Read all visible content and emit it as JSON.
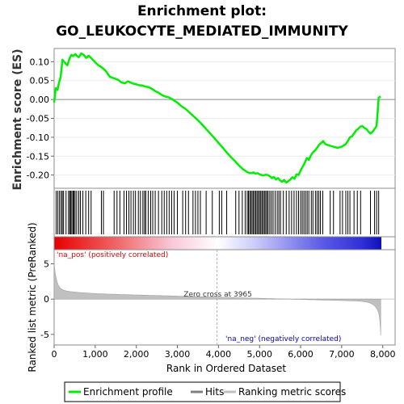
{
  "chart_data": {
    "type": "line",
    "title": "Enrichment plot:",
    "subtitle": "GO_LEUKOCYTE_MEDIATED_IMMUNITY",
    "enrichment_panel": {
      "ylabel": "Enrichment score (ES)",
      "ylim": [
        -0.235,
        0.135
      ],
      "yticks": [
        "0.10",
        "0.05",
        "0.00",
        "-0.05",
        "-0.10",
        "-0.15",
        "-0.20"
      ],
      "ytick_values": [
        0.1,
        0.05,
        0.0,
        -0.05,
        -0.1,
        -0.15,
        -0.2
      ],
      "color": "#00ee00",
      "x": [
        0,
        40,
        80,
        120,
        160,
        200,
        260,
        320,
        380,
        420,
        460,
        520,
        560,
        600,
        660,
        720,
        780,
        840,
        900,
        960,
        1060,
        1160,
        1260,
        1360,
        1460,
        1560,
        1640,
        1720,
        1800,
        1860,
        1920,
        1980,
        2060,
        2140,
        2220,
        2300,
        2380,
        2460,
        2540,
        2620,
        2700,
        2780,
        2860,
        2940,
        3020,
        3100,
        3200,
        3300,
        3400,
        3500,
        3600,
        3700,
        3800,
        3900,
        4000,
        4100,
        4200,
        4300,
        4400,
        4500,
        4600,
        4700,
        4750,
        4800,
        4850,
        4900,
        4950,
        5000,
        5050,
        5100,
        5150,
        5200,
        5250,
        5300,
        5350,
        5400,
        5450,
        5500,
        5550,
        5600,
        5650,
        5700,
        5750,
        5800,
        5850,
        5900,
        5950,
        6000,
        6050,
        6100,
        6150,
        6200,
        6250,
        6300,
        6350,
        6400,
        6450,
        6500,
        6550,
        6600,
        6700,
        6800,
        6900,
        7000,
        7100,
        7150,
        7200,
        7250,
        7300,
        7350,
        7400,
        7450,
        7500,
        7550,
        7600,
        7650,
        7700,
        7750,
        7800,
        7850,
        7900,
        7950
      ],
      "values": [
        -0.008,
        0.03,
        0.025,
        0.045,
        0.06,
        0.105,
        0.098,
        0.09,
        0.11,
        0.118,
        0.115,
        0.12,
        0.115,
        0.112,
        0.122,
        0.118,
        0.11,
        0.116,
        0.11,
        0.103,
        0.092,
        0.085,
        0.075,
        0.06,
        0.056,
        0.052,
        0.045,
        0.043,
        0.048,
        0.045,
        0.042,
        0.041,
        0.038,
        0.037,
        0.034,
        0.033,
        0.028,
        0.022,
        0.018,
        0.012,
        0.008,
        0.006,
        0.002,
        -0.004,
        -0.01,
        -0.018,
        -0.025,
        -0.035,
        -0.045,
        -0.055,
        -0.066,
        -0.078,
        -0.09,
        -0.102,
        -0.115,
        -0.127,
        -0.14,
        -0.152,
        -0.163,
        -0.175,
        -0.185,
        -0.192,
        -0.195,
        -0.195,
        -0.193,
        -0.196,
        -0.195,
        -0.198,
        -0.2,
        -0.201,
        -0.199,
        -0.2,
        -0.203,
        -0.208,
        -0.205,
        -0.212,
        -0.208,
        -0.214,
        -0.218,
        -0.213,
        -0.22,
        -0.216,
        -0.212,
        -0.206,
        -0.21,
        -0.198,
        -0.2,
        -0.188,
        -0.178,
        -0.168,
        -0.155,
        -0.16,
        -0.148,
        -0.14,
        -0.135,
        -0.128,
        -0.12,
        -0.115,
        -0.11,
        -0.118,
        -0.122,
        -0.125,
        -0.128,
        -0.125,
        -0.118,
        -0.11,
        -0.1,
        -0.098,
        -0.09,
        -0.082,
        -0.078,
        -0.072,
        -0.07,
        -0.075,
        -0.078,
        -0.085,
        -0.09,
        -0.086,
        -0.078,
        -0.07,
        0.005,
        0.008
      ]
    },
    "hits_panel": {
      "hit_ranks": [
        50,
        90,
        130,
        170,
        200,
        230,
        290,
        350,
        380,
        400,
        430,
        460,
        480,
        510,
        550,
        600,
        640,
        700,
        770,
        840,
        900,
        1150,
        1200,
        1460,
        1530,
        1600,
        1700,
        1760,
        1820,
        1870,
        1930,
        1980,
        2050,
        2100,
        2160,
        2200,
        2230,
        2290,
        2350,
        2400,
        2460,
        2540,
        2620,
        2680,
        2740,
        2800,
        2860,
        2920,
        3000,
        3130,
        3200,
        3270,
        3380,
        3440,
        3500,
        3560,
        3700,
        3850,
        4020,
        4080,
        4200,
        4420,
        4500,
        4580,
        4650,
        4700,
        4730,
        4760,
        4790,
        4820,
        4850,
        4880,
        4910,
        4940,
        4970,
        5000,
        5030,
        5060,
        5090,
        5120,
        5150,
        5180,
        5210,
        5250,
        5290,
        5330,
        5380,
        5430,
        5470,
        5510,
        5580,
        5650,
        5720,
        5780,
        5840,
        5900,
        5950,
        6000,
        6040,
        6080,
        6120,
        6160,
        6200,
        6260,
        6300,
        6360,
        6400,
        6440,
        6480,
        6540,
        6720,
        6800,
        6960,
        7020,
        7100,
        7150,
        7200,
        7300,
        7380,
        7460,
        7700,
        7800,
        7850,
        7900
      ]
    },
    "ranked_panel": {
      "ylabel": "Ranked list metric (PreRanked)",
      "xlabel": "Rank in Ordered Dataset",
      "ylim": [
        -6.5,
        7
      ],
      "yticks": [
        "5",
        "0",
        "-5"
      ],
      "ytick_values": [
        5,
        0,
        -5
      ],
      "xticks": [
        "0",
        "1,000",
        "2,000",
        "3,000",
        "4,000",
        "5,000",
        "6,000",
        "7,000",
        "8,000"
      ],
      "xtick_values": [
        0,
        1000,
        2000,
        3000,
        4000,
        5000,
        6000,
        7000,
        8000
      ],
      "xlim": [
        0,
        8300
      ],
      "n_genes": 7950,
      "zero_cross": 3965,
      "zero_cross_label": "Zero cross at 3965",
      "pos_label": "'na_pos' (positively correlated)",
      "neg_label": "'na_neg' (negatively correlated)",
      "pos_color": "#dd0000",
      "neg_color": "#0000cc"
    },
    "legend": {
      "placement": "bottom",
      "items": [
        {
          "label": "Enrichment profile",
          "color": "#00ee00"
        },
        {
          "label": "Hits",
          "color": "#808080"
        },
        {
          "label": "Ranking metric scores",
          "color": "#c0c0c0"
        }
      ]
    }
  }
}
